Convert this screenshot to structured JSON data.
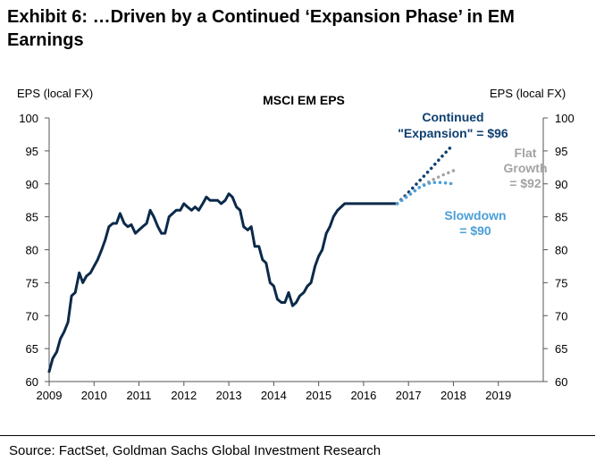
{
  "title": "Exhibit 6: …Driven by a Continued ‘Expansion Phase’ in EM Earnings",
  "source": "Source: FactSet, Goldman Sachs Global Investment Research",
  "chart_data": {
    "type": "line",
    "title": "MSCI EM EPS",
    "ylabel_left": "EPS (local FX)",
    "ylabel_right": "EPS (local FX)",
    "ylim": [
      60,
      100
    ],
    "yticks": [
      60,
      65,
      70,
      75,
      80,
      85,
      90,
      95,
      100
    ],
    "xlim": [
      2009,
      2020
    ],
    "xticks": [
      "2009",
      "2010",
      "2011",
      "2012",
      "2013",
      "2014",
      "2015",
      "2016",
      "2017",
      "2018",
      "2019"
    ],
    "grid": false,
    "colors": {
      "actual": "#0b2a4a",
      "expansion": "#0d3f70",
      "flat": "#a3a3a3",
      "slowdown": "#4a9fd8"
    },
    "series": [
      {
        "key": "actual",
        "style": "solid",
        "x": [
          2009.0,
          2009.08,
          2009.17,
          2009.25,
          2009.33,
          2009.42,
          2009.5,
          2009.58,
          2009.67,
          2009.75,
          2009.83,
          2009.92,
          2010.0,
          2010.08,
          2010.17,
          2010.25,
          2010.33,
          2010.42,
          2010.5,
          2010.58,
          2010.67,
          2010.75,
          2010.83,
          2010.92,
          2011.0,
          2011.08,
          2011.17,
          2011.25,
          2011.33,
          2011.42,
          2011.5,
          2011.58,
          2011.67,
          2011.75,
          2011.83,
          2011.92,
          2012.0,
          2012.08,
          2012.17,
          2012.25,
          2012.33,
          2012.42,
          2012.5,
          2012.58,
          2012.67,
          2012.75,
          2012.83,
          2012.92,
          2013.0,
          2013.08,
          2013.17,
          2013.25,
          2013.33,
          2013.42,
          2013.5,
          2013.58,
          2013.67,
          2013.75,
          2013.83,
          2013.92,
          2014.0,
          2014.08,
          2014.17,
          2014.25,
          2014.33,
          2014.42,
          2014.5,
          2014.58,
          2014.67,
          2014.75,
          2014.83,
          2014.92,
          2015.0,
          2015.08,
          2015.17,
          2015.25,
          2015.33,
          2015.42,
          2015.5,
          2015.58,
          2015.67,
          2015.75,
          2015.83,
          2015.92,
          2016.0,
          2016.08,
          2016.17,
          2016.25,
          2016.33,
          2016.42,
          2016.5,
          2016.58,
          2016.67,
          2016.75
        ],
        "values": [
          61.5,
          63.5,
          64.5,
          66.5,
          67.5,
          69.0,
          73.0,
          73.5,
          76.5,
          75.0,
          76.0,
          76.5,
          77.5,
          78.5,
          80.0,
          81.5,
          83.5,
          84.0,
          84.0,
          85.5,
          84.0,
          83.5,
          83.8,
          82.5,
          83.0,
          83.5,
          84.0,
          86.0,
          85.0,
          83.5,
          82.5,
          82.5,
          85.0,
          85.5,
          86.0,
          86.0,
          87.0,
          86.5,
          86.0,
          86.5,
          86.0,
          87.0,
          88.0,
          87.5,
          87.5,
          87.5,
          87.0,
          87.5,
          88.5,
          88.0,
          86.5,
          86.0,
          83.5,
          83.0,
          83.5,
          80.5,
          80.5,
          78.5,
          78.0,
          75.0,
          74.5,
          72.5,
          72.0,
          72.0,
          73.5,
          71.5,
          72.0,
          73.0,
          73.5,
          74.5,
          75.0,
          77.5,
          79.0,
          80.0,
          82.5,
          83.5,
          85.0,
          86.0,
          86.5,
          87.0,
          87.0,
          87.0,
          87.0,
          87.0,
          87.0,
          87.0,
          87.0,
          87.0,
          87.0,
          87.0,
          87.0,
          87.0,
          87.0,
          87.0
        ]
      },
      {
        "key": "expansion",
        "style": "dotted",
        "x": [
          2016.75,
          2017.0,
          2017.25,
          2017.5,
          2017.75,
          2018.0
        ],
        "values": [
          87.0,
          88.7,
          90.5,
          92.3,
          94.2,
          96.0
        ]
      },
      {
        "key": "flat",
        "style": "dotted",
        "x": [
          2016.75,
          2017.0,
          2017.25,
          2017.5,
          2017.75,
          2018.0
        ],
        "values": [
          87.0,
          88.3,
          89.5,
          90.5,
          91.3,
          92.0
        ]
      },
      {
        "key": "slowdown",
        "style": "dotted",
        "x": [
          2016.75,
          2017.0,
          2017.25,
          2017.5,
          2017.75,
          2018.0
        ],
        "values": [
          87.0,
          88.2,
          89.5,
          90.2,
          90.2,
          90.0
        ]
      }
    ],
    "annotations": [
      {
        "key": "expansion",
        "lines": [
          "Continued",
          "\"Expansion\" = $96"
        ]
      },
      {
        "key": "flat",
        "lines": [
          "Flat",
          "Growth",
          "= $92"
        ]
      },
      {
        "key": "slowdown",
        "lines": [
          "Slowdown",
          "= $90"
        ]
      }
    ]
  }
}
